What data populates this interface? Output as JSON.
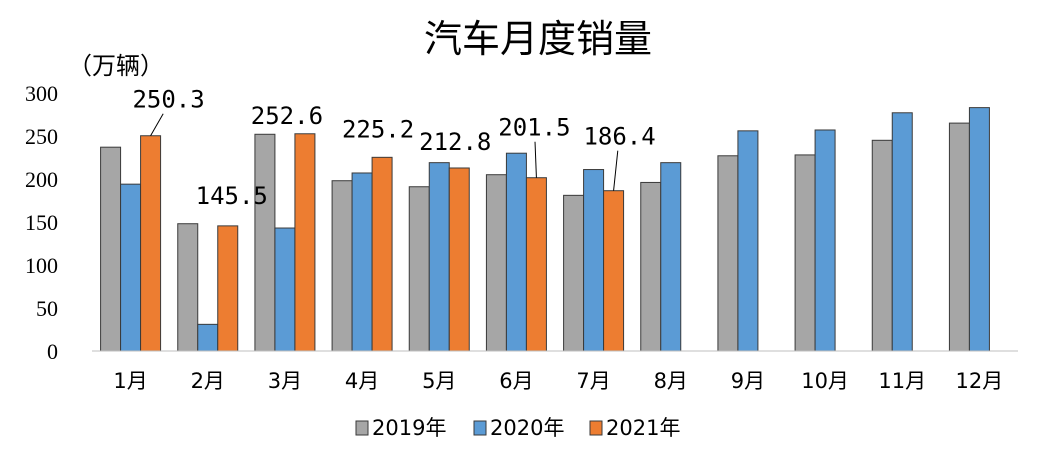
{
  "chart_data": {
    "type": "bar",
    "title": "汽车月度销量",
    "unit_label": "（万辆）",
    "categories": [
      "1月",
      "2月",
      "3月",
      "4月",
      "5月",
      "6月",
      "7月",
      "8月",
      "9月",
      "10月",
      "11月",
      "12月"
    ],
    "series": [
      {
        "name": "2019年",
        "color": "#a6a6a6",
        "values": [
          237,
          148,
          252,
          198,
          191,
          205,
          181,
          196,
          227,
          228,
          245,
          265
        ]
      },
      {
        "name": "2020年",
        "color": "#5b9bd5",
        "values": [
          194,
          31,
          143,
          207,
          219,
          230,
          211,
          219,
          256,
          257,
          277,
          283
        ]
      },
      {
        "name": "2021年",
        "color": "#ed7d31",
        "values": [
          250.3,
          145.5,
          252.6,
          225.2,
          212.8,
          201.5,
          186.4,
          null,
          null,
          null,
          null,
          null
        ]
      }
    ],
    "data_labels": [
      {
        "series": "2021年",
        "category": "1月",
        "text": "250.3"
      },
      {
        "series": "2021年",
        "category": "2月",
        "text": "145.5"
      },
      {
        "series": "2021年",
        "category": "3月",
        "text": "252.6"
      },
      {
        "series": "2021年",
        "category": "4月",
        "text": "225.2"
      },
      {
        "series": "2021年",
        "category": "5月",
        "text": "212.8"
      },
      {
        "series": "2021年",
        "category": "6月",
        "text": "201.5"
      },
      {
        "series": "2021年",
        "category": "7月",
        "text": "186.4"
      }
    ],
    "yticks": [
      0,
      50,
      100,
      150,
      200,
      250,
      300
    ],
    "ylim": [
      0,
      300
    ],
    "grid": false,
    "legend_position": "bottom"
  }
}
